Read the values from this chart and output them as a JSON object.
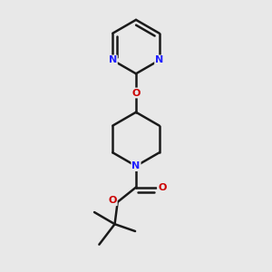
{
  "bg_color": "#e8e8e8",
  "bond_color": "#1a1a1a",
  "N_color": "#2020ff",
  "O_color": "#cc0000",
  "bond_width": 1.8,
  "dbo": 0.018,
  "figsize": [
    3.0,
    3.0
  ],
  "dpi": 100,
  "xlim": [
    0.15,
    0.85
  ],
  "ylim": [
    0.02,
    0.98
  ]
}
